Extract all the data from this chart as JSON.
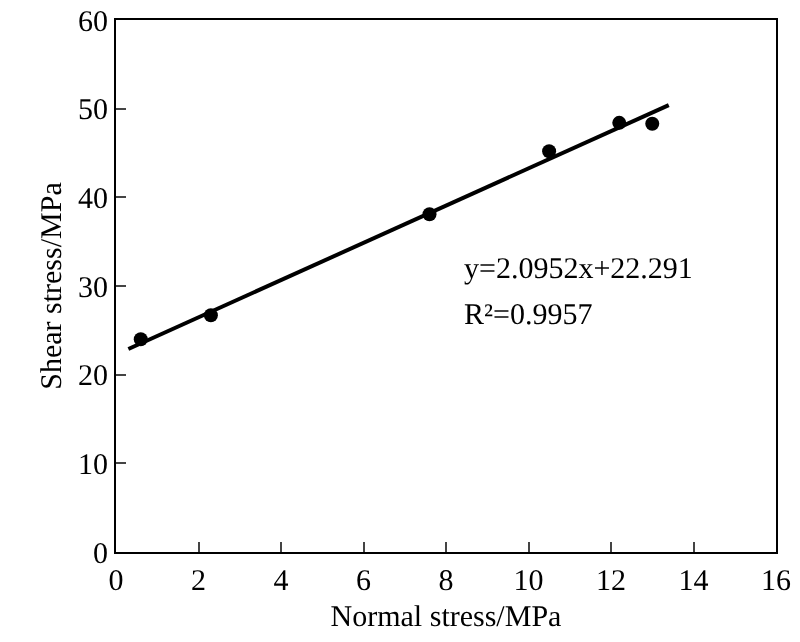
{
  "chart_data": {
    "type": "scatter",
    "xlabel": "Normal stress/MPa",
    "ylabel": "Shear stress/MPa",
    "xlim": [
      0,
      16
    ],
    "xticks": [
      0,
      2,
      4,
      6,
      8,
      10,
      12,
      14,
      16
    ],
    "ylim": [
      0,
      60
    ],
    "yticks": [
      0,
      10,
      20,
      30,
      40,
      50,
      60
    ],
    "grid": false,
    "series": [
      {
        "type": "scatter",
        "color": "#000000",
        "marker": "circle",
        "x": [
          0.6,
          2.3,
          7.6,
          10.5,
          12.2,
          13.0
        ],
        "values": [
          24.0,
          26.7,
          38.1,
          45.2,
          48.4,
          48.3
        ]
      },
      {
        "type": "line",
        "color": "#000000",
        "marker": "none",
        "line_style": "solid",
        "x": [
          0.3,
          13.4
        ],
        "values": [
          22.9,
          50.4
        ]
      }
    ],
    "annotations": [
      "y=2.0952x+22.291",
      "R²=0.9957"
    ]
  }
}
